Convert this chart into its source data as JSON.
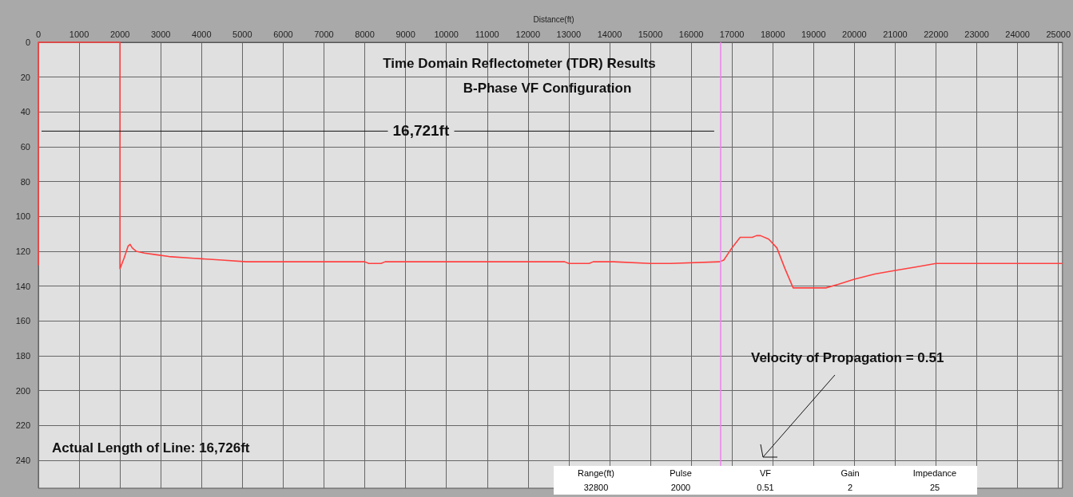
{
  "chart_data": {
    "type": "line",
    "title": "Time Domain Reflectometer (TDR) Results",
    "subtitle": "B-Phase VF Configuration",
    "xlabel": "Distance(ft)",
    "x": [
      0,
      0,
      2000,
      2000,
      2100,
      2200,
      2250,
      2300,
      2400,
      2600,
      2900,
      3200,
      3800,
      4500,
      5100,
      8000,
      8100,
      8400,
      8500,
      12900,
      13000,
      13500,
      13600,
      14100,
      15000,
      15500,
      16700,
      16800,
      17000,
      17200,
      17500,
      17600,
      17700,
      17900,
      18100,
      18300,
      18500,
      19000,
      19300,
      19600,
      20000,
      20500,
      21000,
      21500,
      22000,
      25100
    ],
    "series": [
      {
        "color": "#ff4040",
        "values": [
          128,
          0,
          0,
          130,
          124,
          117,
          116,
          118,
          120,
          121,
          122,
          123,
          124,
          125,
          126,
          126,
          127,
          127,
          126,
          126,
          127,
          127,
          126,
          126,
          127,
          127,
          126,
          125,
          118,
          112,
          112,
          111,
          111,
          113,
          118,
          130,
          141,
          141,
          141,
          139,
          136,
          133,
          131,
          129,
          127,
          127
        ]
      }
    ],
    "xlim": [
      0,
      25100
    ],
    "xticks": [
      0,
      1000,
      2000,
      3000,
      4000,
      5000,
      6000,
      7000,
      8000,
      9000,
      10000,
      11000,
      12000,
      13000,
      14000,
      15000,
      16000,
      17000,
      18000,
      19000,
      20000,
      21000,
      22000,
      23000,
      24000,
      25000
    ],
    "ylim": [
      256,
      0
    ],
    "yticks": [
      0,
      20,
      40,
      60,
      80,
      100,
      120,
      140,
      160,
      180,
      200,
      220,
      240
    ],
    "ref_lines": [
      {
        "axis": "x",
        "value": 16721,
        "color": "#ee82ee"
      }
    ],
    "annotations": [
      {
        "text": "16,721ft",
        "x": 0,
        "y": 51
      },
      "Actual Length of Line: 16,726ft",
      "Velocity of Propagation   = 0.51",
      "Range(ft)",
      "Pulse",
      "VF",
      "Gain",
      "Impedance",
      "32800",
      "2000",
      "0.51",
      "2",
      "25"
    ],
    "grid": true,
    "marker": "none",
    "line_style": "solid"
  }
}
